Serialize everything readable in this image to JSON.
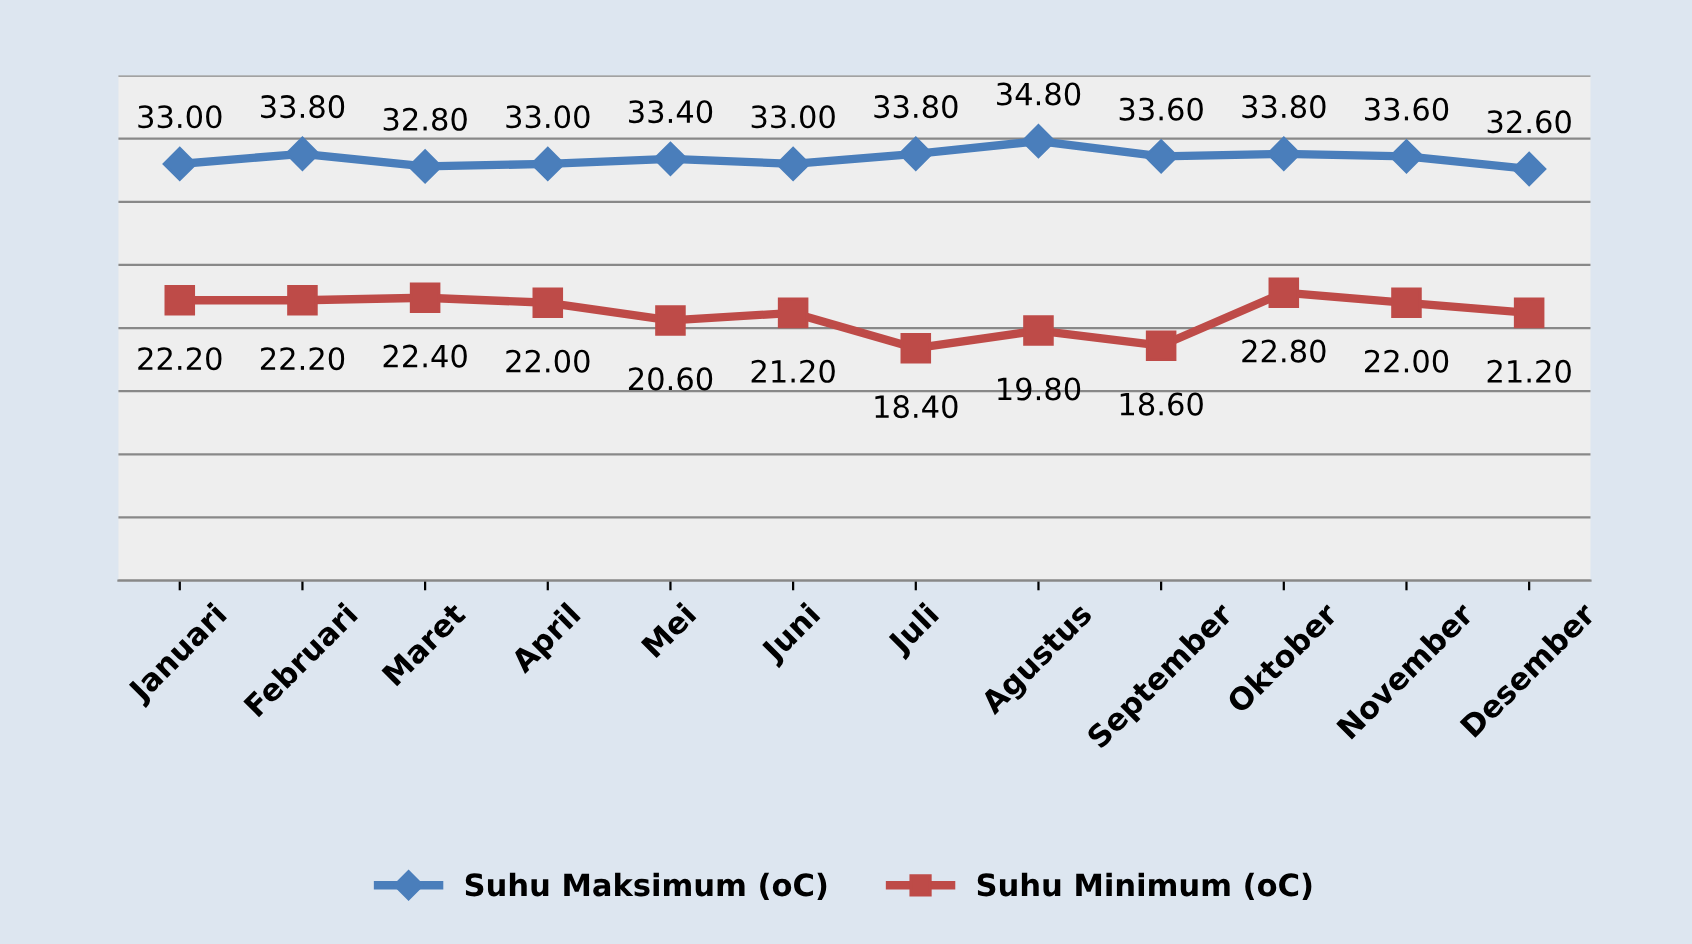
{
  "chart_data": {
    "type": "line",
    "categories": [
      "Januari",
      "Februari",
      "Maret",
      "April",
      "Mei",
      "Juni",
      "Juli",
      "Agustus",
      "September",
      "Oktober",
      "November",
      "Desember"
    ],
    "series": [
      {
        "name": "Suhu Maksimum (oC)",
        "color": "#4a7ebb",
        "marker": "diamond",
        "values": [
          33.0,
          33.8,
          32.8,
          33.0,
          33.4,
          33.0,
          33.8,
          34.8,
          33.6,
          33.8,
          33.6,
          32.6
        ],
        "value_labels": [
          "33.00",
          "33.80",
          "32.80",
          "33.00",
          "33.40",
          "33.00",
          "33.80",
          "34.80",
          "33.60",
          "33.80",
          "33.60",
          "32.60"
        ]
      },
      {
        "name": "Suhu Minimum (oC)",
        "color": "#be4b48",
        "marker": "square",
        "values": [
          22.2,
          22.2,
          22.4,
          22.0,
          20.6,
          21.2,
          18.4,
          19.8,
          18.6,
          22.8,
          22.0,
          21.2
        ],
        "value_labels": [
          "22.20",
          "22.20",
          "22.40",
          "22.00",
          "20.60",
          "21.20",
          "18.40",
          "19.80",
          "18.60",
          "22.80",
          "22.00",
          "21.20"
        ]
      }
    ],
    "ylim": [
      0,
      40
    ],
    "yticks": [
      {
        "value": 0,
        "label": null
      },
      {
        "value": 5,
        "label": null
      },
      {
        "value": 10,
        "label": null
      },
      {
        "value": 15,
        "label": null
      },
      {
        "value": 20,
        "label": null
      },
      {
        "value": 25,
        "label": null
      },
      {
        "value": 30,
        "label": null
      },
      {
        "value": 35,
        "label": null
      },
      {
        "value": 40,
        "label": null
      }
    ],
    "grid": "y",
    "legend": "bottom",
    "line_style": "solid"
  }
}
